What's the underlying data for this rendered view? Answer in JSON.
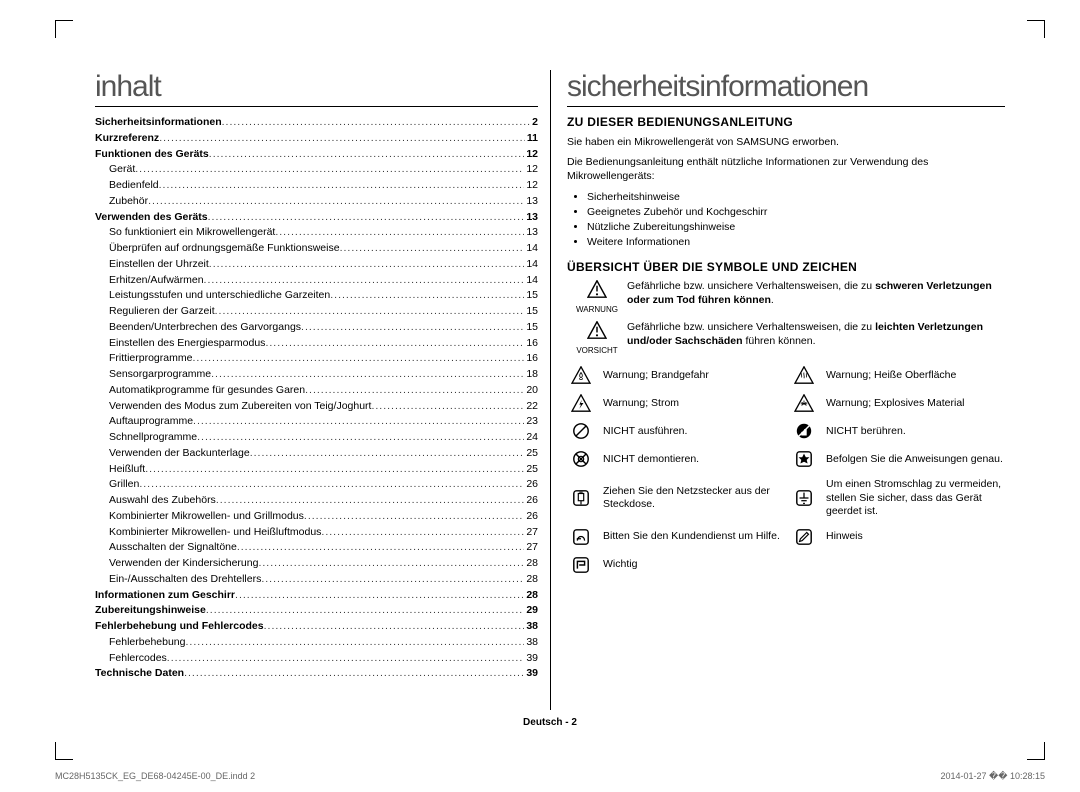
{
  "left": {
    "heading": "inhalt",
    "toc": [
      {
        "label": "Sicherheitsinformationen",
        "page": "2",
        "bold": true,
        "sub": false
      },
      {
        "label": "Kurzreferenz",
        "page": "11",
        "bold": true,
        "sub": false
      },
      {
        "label": "Funktionen des Geräts",
        "page": "12",
        "bold": true,
        "sub": false
      },
      {
        "label": "Gerät",
        "page": "12",
        "bold": false,
        "sub": true
      },
      {
        "label": "Bedienfeld",
        "page": "12",
        "bold": false,
        "sub": true
      },
      {
        "label": "Zubehör",
        "page": "13",
        "bold": false,
        "sub": true
      },
      {
        "label": "Verwenden des Geräts",
        "page": "13",
        "bold": true,
        "sub": false
      },
      {
        "label": "So funktioniert ein Mikrowellengerät",
        "page": "13",
        "bold": false,
        "sub": true
      },
      {
        "label": "Überprüfen auf ordnungsgemäße Funktionsweise",
        "page": "14",
        "bold": false,
        "sub": true
      },
      {
        "label": "Einstellen der Uhrzeit",
        "page": "14",
        "bold": false,
        "sub": true
      },
      {
        "label": "Erhitzen/Aufwärmen",
        "page": "14",
        "bold": false,
        "sub": true
      },
      {
        "label": "Leistungsstufen und unterschiedliche Garzeiten",
        "page": "15",
        "bold": false,
        "sub": true
      },
      {
        "label": "Regulieren der Garzeit",
        "page": "15",
        "bold": false,
        "sub": true
      },
      {
        "label": "Beenden/Unterbrechen des Garvorgangs",
        "page": "15",
        "bold": false,
        "sub": true
      },
      {
        "label": "Einstellen des Energiesparmodus",
        "page": "16",
        "bold": false,
        "sub": true
      },
      {
        "label": "Frittierprogramme",
        "page": "16",
        "bold": false,
        "sub": true
      },
      {
        "label": "Sensorgarprogramme",
        "page": "18",
        "bold": false,
        "sub": true
      },
      {
        "label": "Automatikprogramme für gesundes Garen",
        "page": "20",
        "bold": false,
        "sub": true
      },
      {
        "label": "Verwenden des Modus zum Zubereiten von Teig/Joghurt",
        "page": "22",
        "bold": false,
        "sub": true
      },
      {
        "label": "Auftauprogramme",
        "page": "23",
        "bold": false,
        "sub": true
      },
      {
        "label": "Schnellprogramme",
        "page": "24",
        "bold": false,
        "sub": true
      },
      {
        "label": "Verwenden der Backunterlage",
        "page": "25",
        "bold": false,
        "sub": true
      },
      {
        "label": "Heißluft",
        "page": "25",
        "bold": false,
        "sub": true
      },
      {
        "label": "Grillen",
        "page": "26",
        "bold": false,
        "sub": true
      },
      {
        "label": "Auswahl des Zubehörs",
        "page": "26",
        "bold": false,
        "sub": true
      },
      {
        "label": "Kombinierter Mikrowellen- und Grillmodus",
        "page": "26",
        "bold": false,
        "sub": true
      },
      {
        "label": "Kombinierter Mikrowellen- und Heißluftmodus",
        "page": "27",
        "bold": false,
        "sub": true
      },
      {
        "label": "Ausschalten der Signaltöne",
        "page": "27",
        "bold": false,
        "sub": true
      },
      {
        "label": "Verwenden der Kindersicherung",
        "page": "28",
        "bold": false,
        "sub": true
      },
      {
        "label": "Ein-/Ausschalten des Drehtellers",
        "page": "28",
        "bold": false,
        "sub": true
      },
      {
        "label": "Informationen zum Geschirr",
        "page": "28",
        "bold": true,
        "sub": false
      },
      {
        "label": "Zubereitungshinweise",
        "page": "29",
        "bold": true,
        "sub": false
      },
      {
        "label": "Fehlerbehebung und Fehlercodes",
        "page": "38",
        "bold": true,
        "sub": false
      },
      {
        "label": "Fehlerbehebung",
        "page": "38",
        "bold": false,
        "sub": true
      },
      {
        "label": "Fehlercodes",
        "page": "39",
        "bold": false,
        "sub": true
      },
      {
        "label": "Technische Daten",
        "page": "39",
        "bold": true,
        "sub": false
      }
    ]
  },
  "right": {
    "heading": "sicherheitsinformationen",
    "sec1_title": "ZU DIESER BEDIENUNGSANLEITUNG",
    "sec1_p1": "Sie haben ein Mikrowellengerät von SAMSUNG erworben.",
    "sec1_p2": "Die Bedienungsanleitung enthält nützliche Informationen zur Verwendung des Mikrowellengeräts:",
    "sec1_bullets": [
      "Sicherheitshinweise",
      "Geeignetes Zubehör und Kochgeschirr",
      "Nützliche Zubereitungshinweise",
      "Weitere Informationen"
    ],
    "sec2_title": "ÜBERSICHT ÜBER DIE SYMBOLE UND ZEICHEN",
    "warnung_label": "WARNUNG",
    "warnung_text_a": "Gefährliche bzw. unsichere Verhaltensweisen, die zu ",
    "warnung_text_b": "schweren Verletzungen oder zum Tod führen können",
    "vorsicht_label": "VORSICHT",
    "vorsicht_text_a": "Gefährliche bzw. unsichere Verhaltensweisen, die zu ",
    "vorsicht_text_b": "leichten Verletzungen und/oder Sachschäden",
    "vorsicht_text_c": " führen können.",
    "symbols": {
      "r1c1": "Warnung; Brandgefahr",
      "r1c2": "Warnung; Heiße Oberfläche",
      "r2c1": "Warnung; Strom",
      "r2c2": "Warnung; Explosives Material",
      "r3c1": "NICHT ausführen.",
      "r3c2": "NICHT berühren.",
      "r4c1": "NICHT demontieren.",
      "r4c2": "Befolgen Sie die Anweisungen genau.",
      "r5c1": "Ziehen Sie den Netzstecker aus der Steckdose.",
      "r5c2": "Um einen Stromschlag zu vermeiden, stellen Sie sicher, dass das Gerät geerdet ist.",
      "r6c1": "Bitten Sie den Kundendienst um Hilfe.",
      "r6c2": "Hinweis",
      "r7c1": "Wichtig"
    }
  },
  "footer": "Deutsch - 2",
  "meta_left": "MC28H5135CK_EG_DE68-04245E-00_DE.indd   2",
  "meta_right": "2014-01-27   �� 10:28:15"
}
